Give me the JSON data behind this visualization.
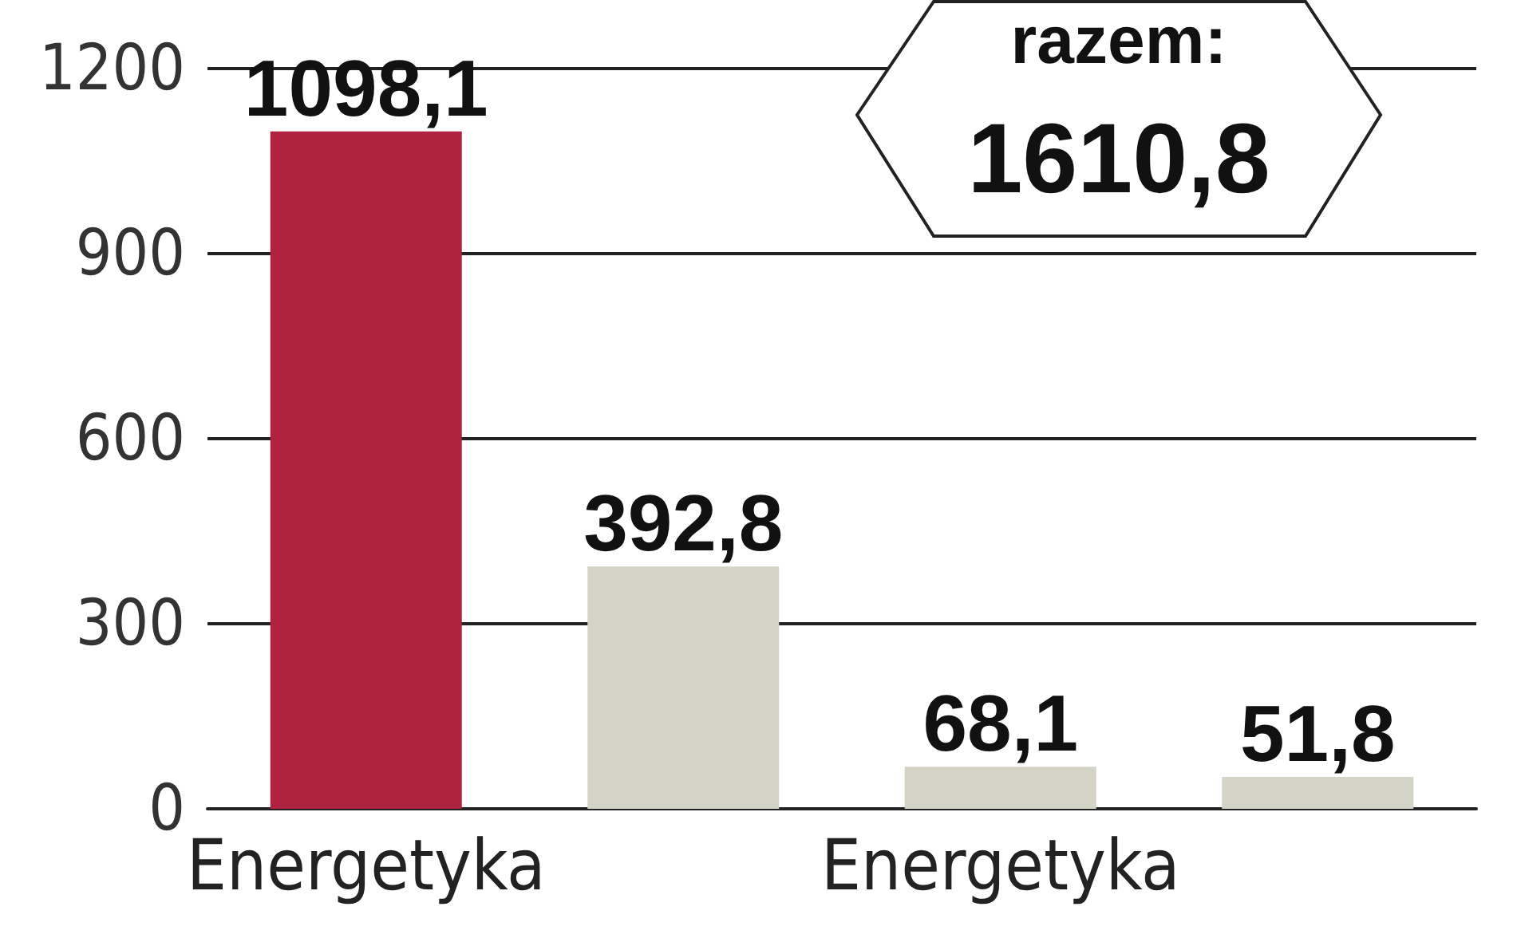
{
  "chart_data": {
    "type": "bar",
    "categories": [
      "Energetyka",
      null,
      "Energetyka",
      null
    ],
    "values": [
      1098.1,
      392.8,
      68.1,
      51.8
    ],
    "colors": [
      "#b02340",
      "#d3d3c6",
      "#d3d3c6",
      "#d3d3c6"
    ],
    "value_labels": [
      "1098,1",
      "392,8",
      "68,1",
      "51,8"
    ],
    "ylim": [
      0,
      1200
    ],
    "yticks": [
      0,
      300,
      600,
      900,
      1200
    ],
    "grid": "y",
    "annotations": [
      "razem:",
      "1610,8"
    ]
  }
}
